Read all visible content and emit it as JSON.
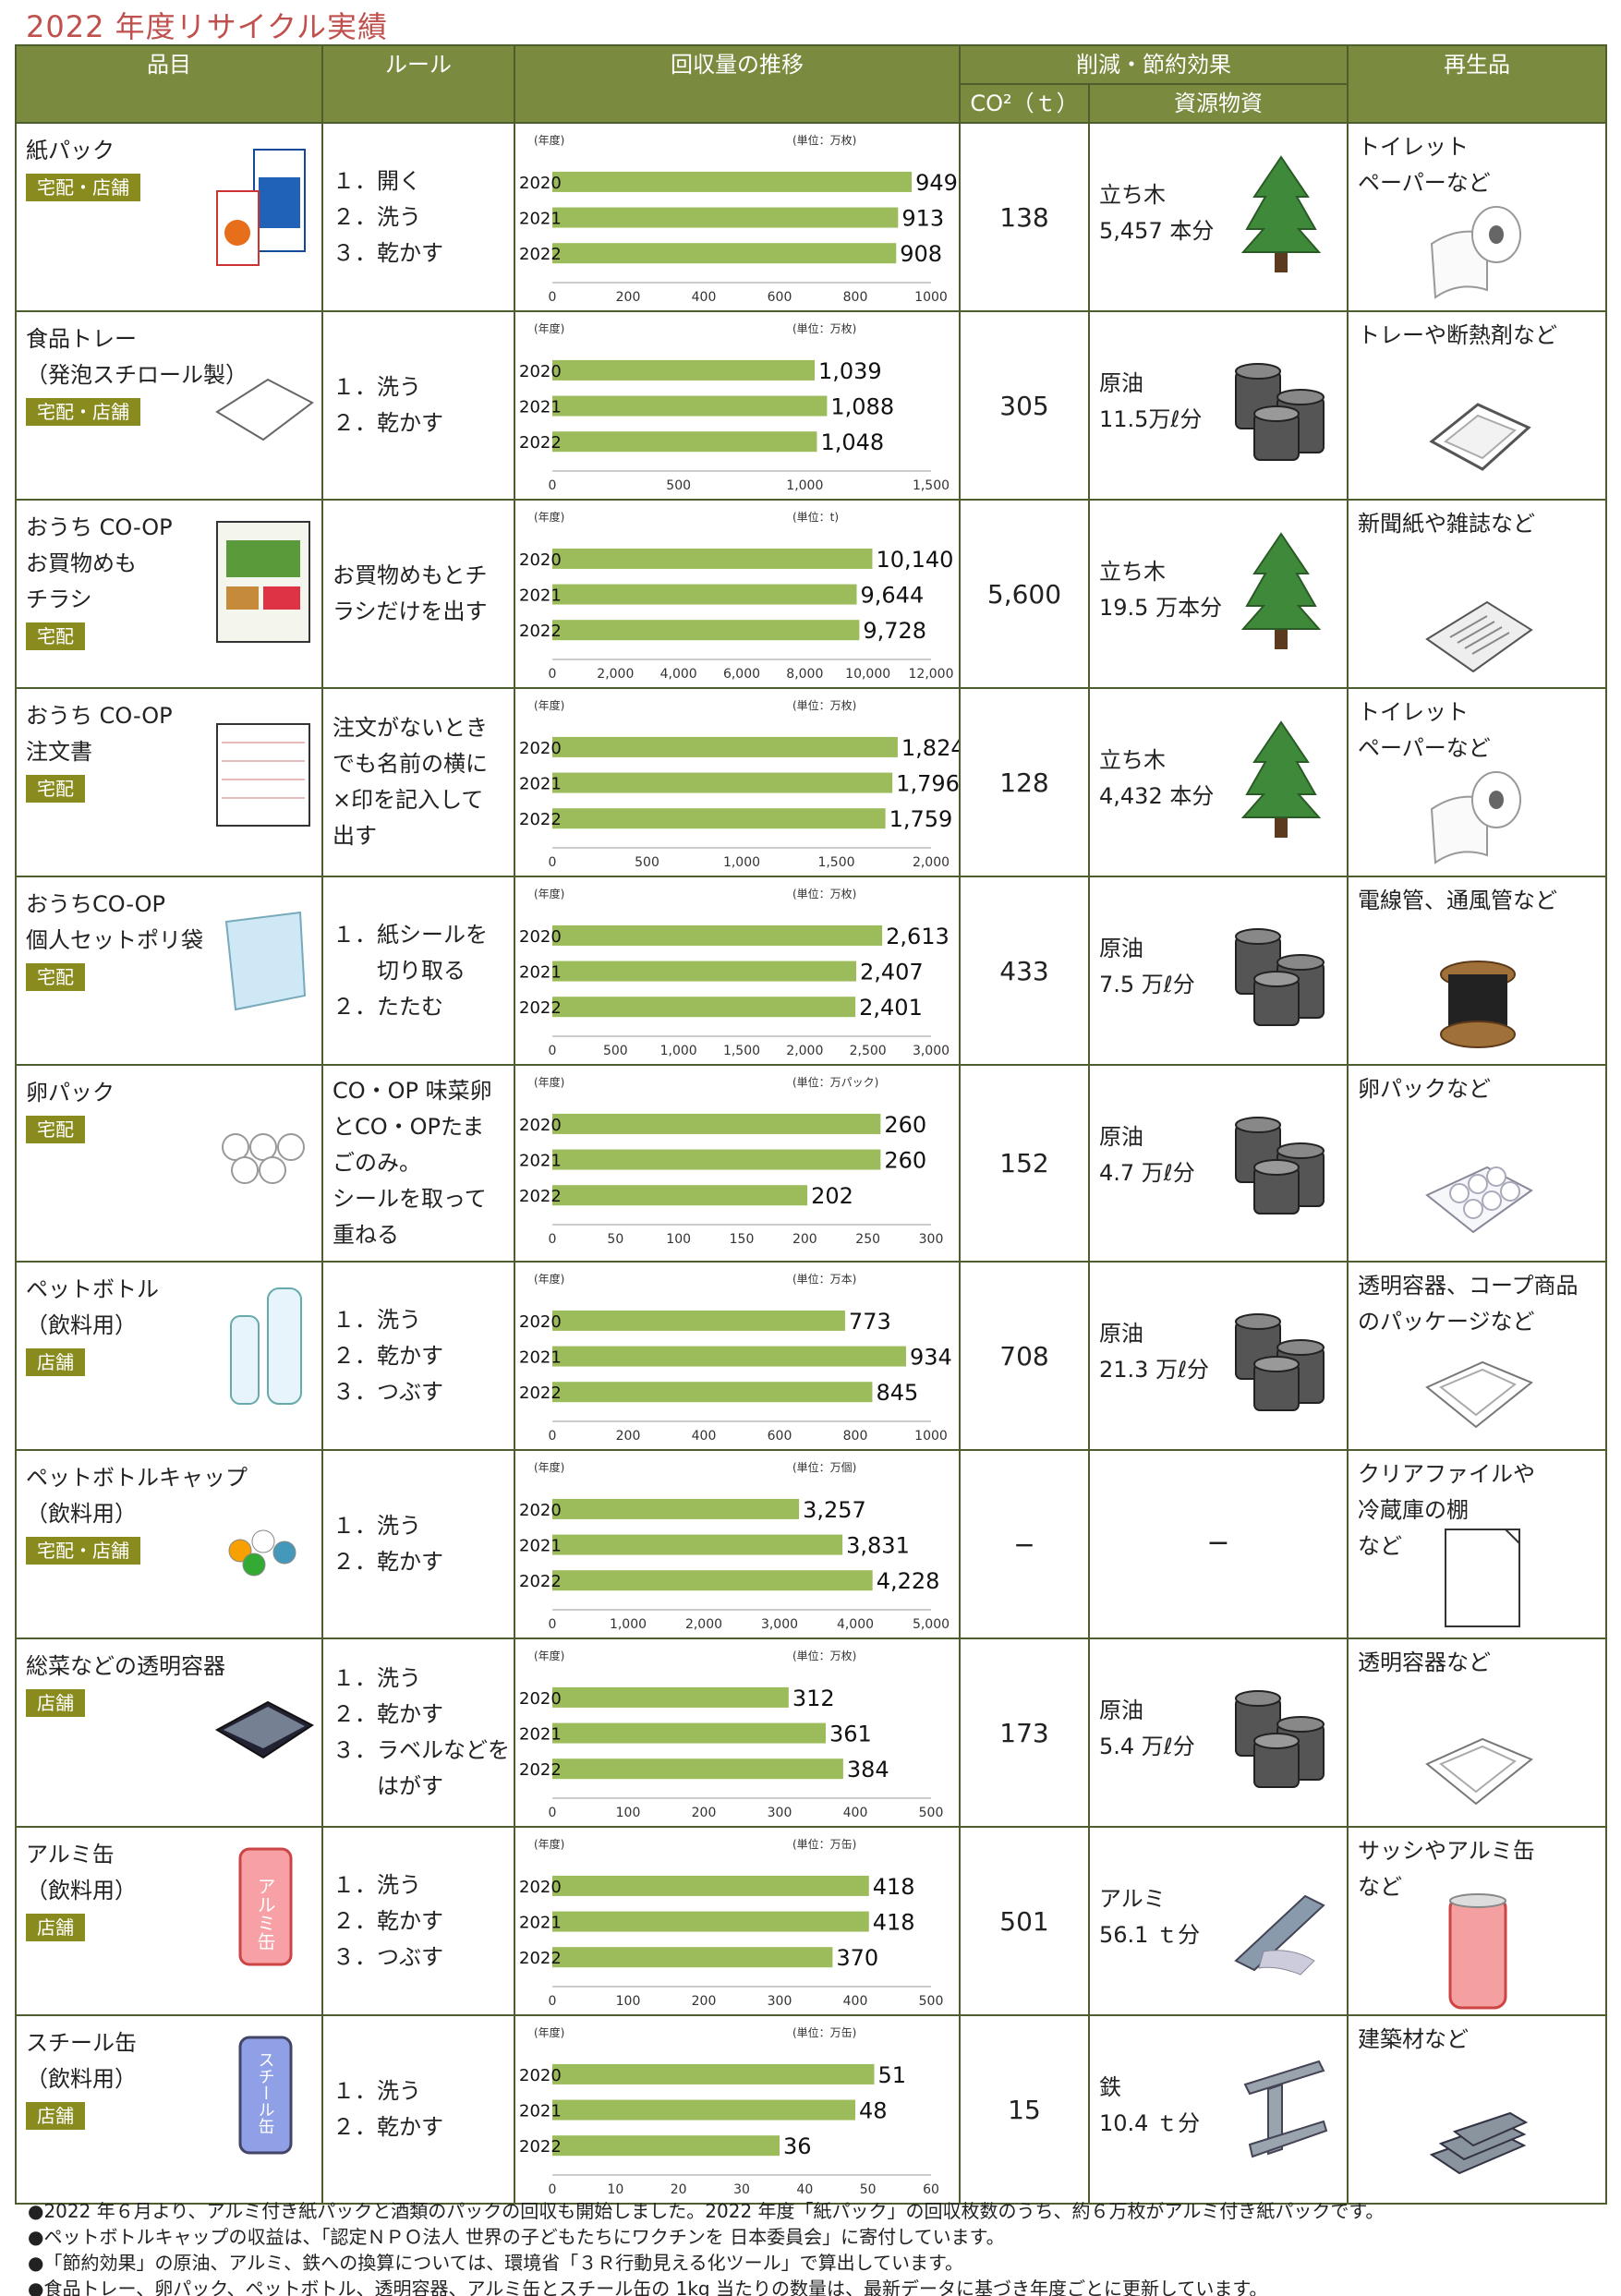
{
  "title": "2022 年度リサイクル実績",
  "header": {
    "item": "品目",
    "rule": "ルール",
    "trend": "回収量の推移",
    "effect": "削減・節約効果",
    "co2": "CO²（ｔ）",
    "resource": "資源物資",
    "product": "再生品"
  },
  "colors": {
    "header_bg": "#7a8b3f",
    "bar": "#9cbb5a",
    "tag_bg": "#8a8b1e",
    "title": "#c0504d"
  },
  "rows": [
    {
      "name": [
        "紙パック"
      ],
      "tag": "宅配・店舗",
      "rules": [
        "１．開く",
        "２．洗う",
        "３．乾かす"
      ],
      "co2": "138",
      "resource": [
        "立ち木",
        "5,457 本分"
      ],
      "resource_icon": "tree-icon",
      "product": [
        "トイレット",
        "ペーパーなど"
      ],
      "product_icon": "toilet-paper-icon",
      "chart": {
        "unit": "(単位：万枚)",
        "year_label": "(年度)",
        "years": [
          "2020",
          "2021",
          "2022"
        ],
        "values": [
          949,
          913,
          908
        ],
        "labels": [
          "949",
          "913",
          "908"
        ],
        "max": 1000,
        "ticks": [
          "0",
          "200",
          "400",
          "600",
          "800",
          "1000"
        ]
      }
    },
    {
      "name": [
        "食品トレー",
        "（発泡スチロール製）"
      ],
      "tag": "宅配・店舗",
      "rules": [
        "１．洗う",
        "２．乾かす"
      ],
      "co2": "305",
      "resource": [
        "原油",
        "11.5万ℓ分"
      ],
      "resource_icon": "oil-drum-icon",
      "product": [
        "トレーや断熱剤など"
      ],
      "product_icon": "tray-icon",
      "chart": {
        "unit": "(単位：万枚)",
        "year_label": "(年度)",
        "years": [
          "2020",
          "2021",
          "2022"
        ],
        "values": [
          1039,
          1088,
          1048
        ],
        "labels": [
          "1,039",
          "1,088",
          "1,048"
        ],
        "max": 1500,
        "ticks": [
          "0",
          "500",
          "1,000",
          "1,500"
        ]
      }
    },
    {
      "name": [
        "おうち CO-OP",
        "お買物めも",
        "チラシ"
      ],
      "tag": "宅配",
      "rules": [
        "お買物めもとチ",
        "ラシだけを出す"
      ],
      "co2": "5,600",
      "resource": [
        "立ち木",
        "19.5 万本分"
      ],
      "resource_icon": "tree-icon",
      "product": [
        "新聞紙や雑誌など"
      ],
      "product_icon": "newspaper-icon",
      "chart": {
        "unit": "(単位：t)",
        "year_label": "(年度)",
        "years": [
          "2020",
          "2021",
          "2022"
        ],
        "values": [
          10140,
          9644,
          9728
        ],
        "labels": [
          "10,140",
          "9,644",
          "9,728"
        ],
        "max": 12000,
        "ticks": [
          "0",
          "2,000",
          "4,000",
          "6,000",
          "8,000",
          "10,000",
          "12,000"
        ]
      }
    },
    {
      "name": [
        "おうち CO-OP",
        "注文書"
      ],
      "tag": "宅配",
      "rules": [
        "注文がないとき",
        "でも名前の横に",
        "×印を記入して",
        "出す"
      ],
      "co2": "128",
      "resource": [
        "立ち木",
        "4,432 本分"
      ],
      "resource_icon": "tree-icon",
      "product": [
        "トイレット",
        "ペーパーなど"
      ],
      "product_icon": "toilet-paper-icon",
      "chart": {
        "unit": "(単位：万枚)",
        "year_label": "(年度)",
        "years": [
          "2020",
          "2021",
          "2022"
        ],
        "values": [
          1824,
          1796,
          1759
        ],
        "labels": [
          "1,824",
          "1,796",
          "1,759"
        ],
        "max": 2000,
        "ticks": [
          "0",
          "500",
          "1,000",
          "1,500",
          "2,000"
        ]
      }
    },
    {
      "name": [
        "おうちCO-OP",
        "個人セットポリ袋"
      ],
      "tag": "宅配",
      "rules": [
        "１．紙シールを",
        "　　切り取る",
        "２．たたむ"
      ],
      "co2": "433",
      "resource": [
        "原油",
        "7.5 万ℓ分"
      ],
      "resource_icon": "oil-drum-icon",
      "product": [
        "電線管、通風管など"
      ],
      "product_icon": "cable-reel-icon",
      "chart": {
        "unit": "(単位：万枚)",
        "year_label": "(年度)",
        "years": [
          "2020",
          "2021",
          "2022"
        ],
        "values": [
          2613,
          2407,
          2401
        ],
        "labels": [
          "2,613",
          "2,407",
          "2,401"
        ],
        "max": 3000,
        "ticks": [
          "0",
          "500",
          "1,000",
          "1,500",
          "2,000",
          "2,500",
          "3,000"
        ]
      }
    },
    {
      "name": [
        "卵パック"
      ],
      "tag": "宅配",
      "rules": [
        "CO・OP 味菜卵",
        "とCO・OPたま",
        "ごのみ。",
        "シールを取って",
        "重ねる"
      ],
      "co2": "152",
      "resource": [
        "原油",
        "4.7 万ℓ分"
      ],
      "resource_icon": "oil-drum-icon",
      "product": [
        "卵パックなど"
      ],
      "product_icon": "egg-pack-icon",
      "chart": {
        "unit": "(単位：万パック)",
        "year_label": "(年度)",
        "years": [
          "2020",
          "2021",
          "2022"
        ],
        "values": [
          260,
          260,
          202
        ],
        "labels": [
          "260",
          "260",
          "202"
        ],
        "max": 300,
        "ticks": [
          "0",
          "50",
          "100",
          "150",
          "200",
          "250",
          "300"
        ]
      }
    },
    {
      "name": [
        "ペットボトル",
        "（飲料用）"
      ],
      "tag": "店舗",
      "rules": [
        "１．洗う",
        "２．乾かす",
        "３．つぶす"
      ],
      "co2": "708",
      "resource": [
        "原油",
        "21.3 万ℓ分"
      ],
      "resource_icon": "oil-drum-icon",
      "product": [
        "透明容器、コープ商品",
        "のパッケージなど"
      ],
      "product_icon": "container-icon",
      "chart": {
        "unit": "(単位：万本)",
        "year_label": "(年度)",
        "years": [
          "2020",
          "2021",
          "2022"
        ],
        "values": [
          773,
          934,
          845
        ],
        "labels": [
          "773",
          "934",
          "845"
        ],
        "max": 1000,
        "ticks": [
          "0",
          "200",
          "400",
          "600",
          "800",
          "1000"
        ]
      }
    },
    {
      "name": [
        "ペットボトルキャップ",
        "（飲料用）"
      ],
      "tag": "宅配・店舗",
      "rules": [
        "１．洗う",
        "２．乾かす"
      ],
      "co2": "−",
      "resource": [
        "−"
      ],
      "resource_icon": "",
      "product": [
        "クリアファイルや",
        "冷蔵庫の棚",
        "など"
      ],
      "product_icon": "clear-file-icon",
      "chart": {
        "unit": "(単位：万個)",
        "year_label": "(年度)",
        "years": [
          "2020",
          "2021",
          "2022"
        ],
        "values": [
          3257,
          3831,
          4228
        ],
        "labels": [
          "3,257",
          "3,831",
          "4,228"
        ],
        "max": 5000,
        "ticks": [
          "0",
          "1,000",
          "2,000",
          "3,000",
          "4,000",
          "5,000"
        ]
      }
    },
    {
      "name": [
        "総菜などの透明容器"
      ],
      "tag": "店舗",
      "rules": [
        "１．洗う",
        "２．乾かす",
        "３．ラベルなどを",
        "　　はがす"
      ],
      "co2": "173",
      "resource": [
        "原油",
        "5.4 万ℓ分"
      ],
      "resource_icon": "oil-drum-icon",
      "product": [
        "透明容器など"
      ],
      "product_icon": "container-icon",
      "chart": {
        "unit": "(単位：万枚)",
        "year_label": "(年度)",
        "years": [
          "2020",
          "2021",
          "2022"
        ],
        "values": [
          312,
          361,
          384
        ],
        "labels": [
          "312",
          "361",
          "384"
        ],
        "max": 500,
        "ticks": [
          "0",
          "100",
          "200",
          "300",
          "400",
          "500"
        ]
      }
    },
    {
      "name": [
        "アルミ缶",
        "（飲料用）"
      ],
      "tag": "店舗",
      "rules": [
        "１．洗う",
        "２．乾かす",
        "３．つぶす"
      ],
      "co2": "501",
      "resource": [
        "アルミ",
        "56.1 ｔ分"
      ],
      "resource_icon": "aluminum-ingot-icon",
      "product": [
        "サッシやアルミ缶",
        "など"
      ],
      "product_icon": "aluminum-can-icon",
      "chart": {
        "unit": "(単位：万缶)",
        "year_label": "(年度)",
        "years": [
          "2020",
          "2021",
          "2022"
        ],
        "values": [
          418,
          418,
          370
        ],
        "labels": [
          "418",
          "418",
          "370"
        ],
        "max": 500,
        "ticks": [
          "0",
          "100",
          "200",
          "300",
          "400",
          "500"
        ]
      }
    },
    {
      "name": [
        "スチール缶",
        "（飲料用）"
      ],
      "tag": "店舗",
      "rules": [
        "１．洗う",
        "２．乾かす"
      ],
      "co2": "15",
      "resource": [
        "鉄",
        "10.4 ｔ分"
      ],
      "resource_icon": "steel-beam-icon",
      "product": [
        "建築材など"
      ],
      "product_icon": "steel-stack-icon",
      "chart": {
        "unit": "(単位：万缶)",
        "year_label": "(年度)",
        "years": [
          "2020",
          "2021",
          "2022"
        ],
        "values": [
          51,
          48,
          36
        ],
        "labels": [
          "51",
          "48",
          "36"
        ],
        "max": 60,
        "ticks": [
          "0",
          "10",
          "20",
          "30",
          "40",
          "50",
          "60"
        ]
      }
    }
  ],
  "can_labels": {
    "aluminum": "アルミ缶",
    "steel": "スチール缶"
  },
  "notes": [
    "●2022 年６月より、アルミ付き紙パックと酒類のパックの回収も開始しました。2022 年度「紙パック」の回収枚数のうち、約６万枚がアルミ付き紙パックです。",
    "●ペットボトルキャップの収益は、「認定ＮＰＯ法人 世界の子どもたちにワクチンを 日本委員会」に寄付しています。",
    "●「節約効果」の原油、アルミ、鉄への換算については、環境省「３Ｒ行動見える化ツール」で算出しています。",
    "●食品トレー、卵パック、ペットボトル、透明容器、アルミ缶とスチール缶の 1kg 当たりの数量は、最新データに基づき年度ごとに更新しています。"
  ]
}
